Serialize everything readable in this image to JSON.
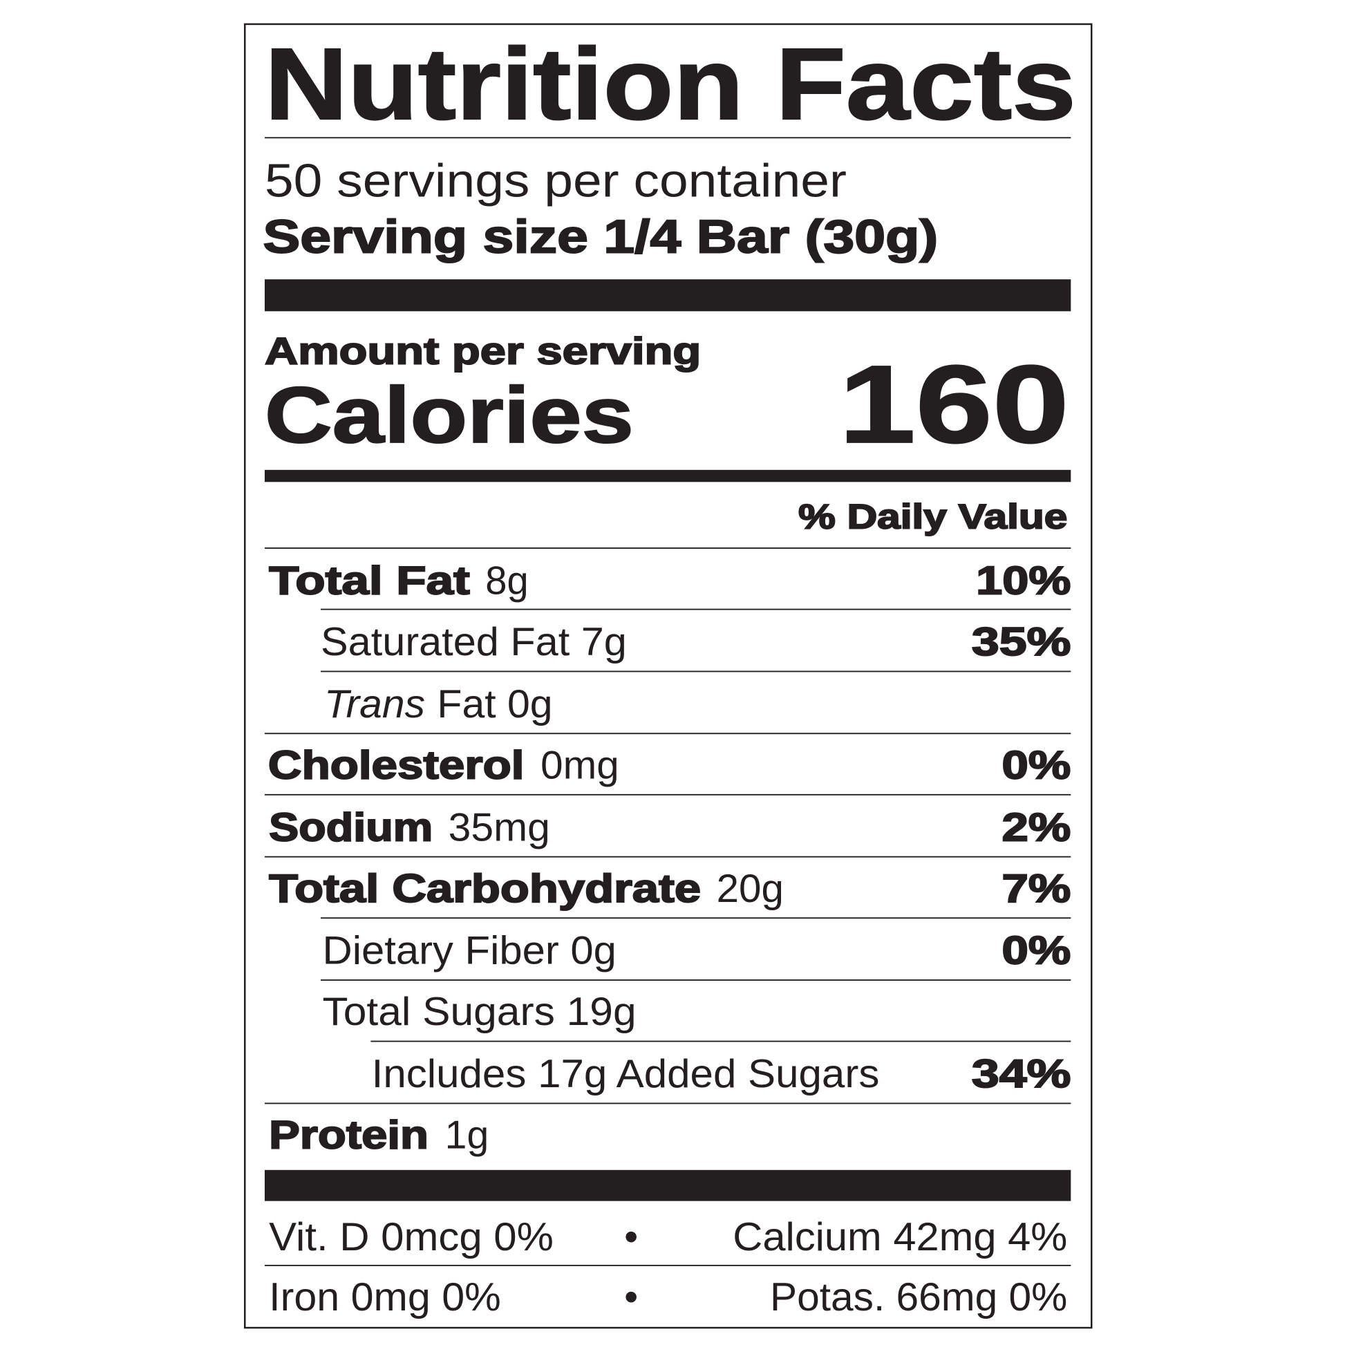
{
  "label": {
    "title": "Nutrition Facts",
    "servings_per_container": "50 servings per container",
    "serving_size": "Serving size 1/4 Bar (30g)",
    "amount_per_serving": "Amount per serving",
    "calories_label": "Calories",
    "calories_value": "160",
    "daily_value_header": "% Daily Value",
    "rows": [
      {
        "label": "Total Fat",
        "amount": "8g",
        "dv": "10%"
      },
      {
        "label": "Saturated Fat 7g",
        "dv": "35%"
      },
      {
        "label": "Trans",
        "amount": "Fat 0g"
      },
      {
        "label": "Cholesterol",
        "amount": "0mg",
        "dv": "0%"
      },
      {
        "label": "Sodium",
        "amount": "35mg",
        "dv": "2%"
      },
      {
        "label": "Total Carbohydrate",
        "amount": "20g",
        "dv": "7%"
      },
      {
        "label": "Dietary Fiber 0g",
        "dv": "0%"
      },
      {
        "label": "Total Sugars 19g"
      },
      {
        "label": "Includes 17g Added Sugars",
        "dv": "34%"
      },
      {
        "label": "Protein",
        "amount": "1g"
      }
    ],
    "micronutrients": [
      {
        "left": "Vit. D 0mcg 0%",
        "separator": "•",
        "right": "Calcium 42mg 4%"
      },
      {
        "left": "Iron 0mg 0%",
        "separator": "•",
        "right": "Potas. 66mg 0%"
      }
    ]
  }
}
